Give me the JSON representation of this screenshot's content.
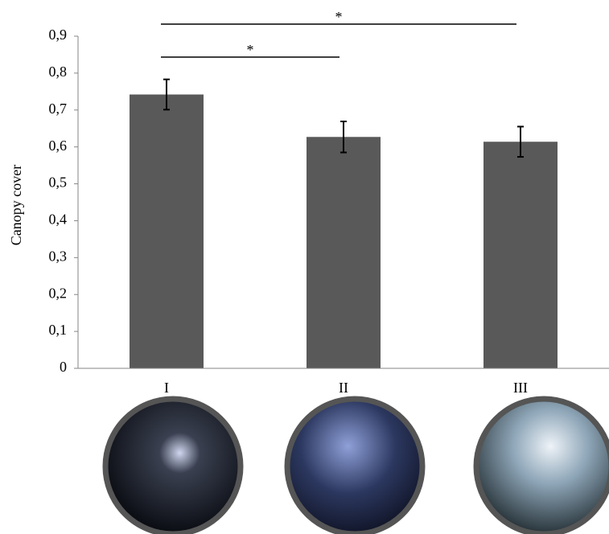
{
  "chart_data": {
    "type": "bar",
    "y_label": "Canopy cover",
    "categories": [
      "I",
      "II",
      "III"
    ],
    "values": [
      0.742,
      0.627,
      0.614
    ],
    "errors": [
      0.041,
      0.042,
      0.041
    ],
    "color": "#595959",
    "ylim": [
      0,
      0.9
    ],
    "yticks": [
      0,
      {
        "value": 0.1,
        "label": "0,1"
      },
      {
        "value": 0.2,
        "label": "0,2"
      },
      {
        "value": 0.3,
        "label": "0,3"
      },
      {
        "value": 0.4,
        "label": "0,4"
      },
      {
        "value": 0.5,
        "label": "0,5"
      },
      {
        "value": 0.6,
        "label": "0,6"
      },
      {
        "value": 0.7,
        "label": "0,7"
      },
      {
        "value": 0.8,
        "label": "0,8"
      },
      {
        "value": 0.9,
        "label": "0,9"
      }
    ],
    "significance": [
      {
        "label": "*",
        "from": 0,
        "to": 1
      },
      {
        "label": "*",
        "from": 0,
        "to": 2
      }
    ]
  }
}
